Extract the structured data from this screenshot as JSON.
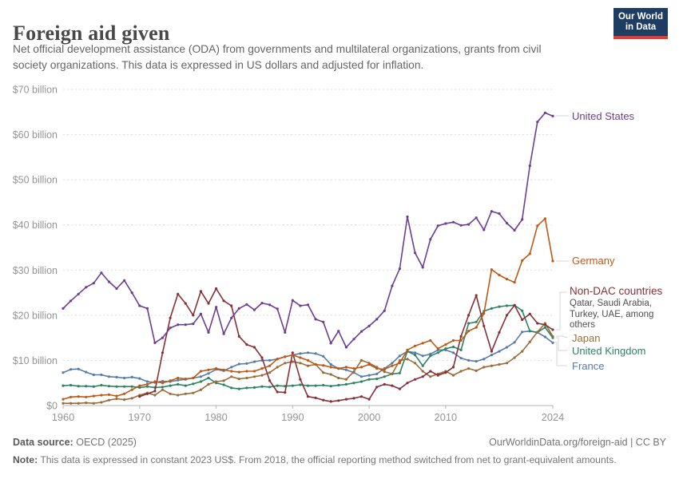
{
  "header": {
    "title": "Foreign aid given",
    "subtitle": "Net official development assistance (ODA) from governments and multilateral organizations, grants from civil society organizations. This data is expressed in US dollars and adjusted for inflation."
  },
  "logo": {
    "line1": "Our World",
    "line2": "in Data",
    "bg_color": "#1d3d63",
    "stripe_color": "#e23d35"
  },
  "labels": {
    "united_states": "United States",
    "germany": "Germany",
    "non_dac": "Non-DAC countries",
    "non_dac_sub": "Qatar, Saudi Arabia, Turkey, UAE, among others",
    "japan": "Japan",
    "united_kingdom": "United Kingdom",
    "france": "France"
  },
  "footer": {
    "source_label": "Data source:",
    "source": "OECD (2025)",
    "link": "OurWorldinData.org/foreign-aid | CC BY",
    "note_label": "Note:",
    "note": "This data is expressed in constant 2023 US$. From 2018, the official reporting method switched from net to grant-equivalent amounts."
  },
  "chart_data": {
    "type": "line",
    "title": "Foreign aid given",
    "unit": "US$ billion (constant 2023 US$)",
    "xlabel": "",
    "ylabel": "",
    "xlim": [
      1960,
      2024
    ],
    "ylim": [
      0,
      70
    ],
    "grid": "horizontal dashed",
    "legend_position": "right-edge entity labels",
    "x_ticks": [
      1960,
      1970,
      1980,
      1990,
      2000,
      2010,
      2024
    ],
    "y_ticks": [
      {
        "value": 0,
        "label": "$0"
      },
      {
        "value": 10,
        "label": "$10 billion"
      },
      {
        "value": 20,
        "label": "$20 billion"
      },
      {
        "value": 30,
        "label": "$30 billion"
      },
      {
        "value": 40,
        "label": "$40 billion"
      },
      {
        "value": 50,
        "label": "$50 billion"
      },
      {
        "value": 60,
        "label": "$60 billion"
      },
      {
        "value": 70,
        "label": "$70 billion"
      }
    ],
    "years": [
      1960,
      1961,
      1962,
      1963,
      1964,
      1965,
      1966,
      1967,
      1968,
      1969,
      1970,
      1971,
      1972,
      1973,
      1974,
      1975,
      1976,
      1977,
      1978,
      1979,
      1980,
      1981,
      1982,
      1983,
      1984,
      1985,
      1986,
      1987,
      1988,
      1989,
      1990,
      1991,
      1992,
      1993,
      1994,
      1995,
      1996,
      1997,
      1998,
      1999,
      2000,
      2001,
      2002,
      2003,
      2004,
      2005,
      2006,
      2007,
      2008,
      2009,
      2010,
      2011,
      2012,
      2013,
      2014,
      2015,
      2016,
      2017,
      2018,
      2019,
      2020,
      2021,
      2022,
      2023,
      2024
    ],
    "series": [
      {
        "name": "United States",
        "color": "#6D3E91",
        "values": [
          21.5,
          23.2,
          24.7,
          26.2,
          27.1,
          29.4,
          27.4,
          25.9,
          27.7,
          25.0,
          22.1,
          21.5,
          13.9,
          15.0,
          17.2,
          17.9,
          17.9,
          18.1,
          20.3,
          16.2,
          21.8,
          15.9,
          19.4,
          21.5,
          22.4,
          21.2,
          22.7,
          22.3,
          21.4,
          16.2,
          23.3,
          22.1,
          22.3,
          19.1,
          18.5,
          13.8,
          16.5,
          12.9,
          14.7,
          16.4,
          17.6,
          19.1,
          21.0,
          26.5,
          30.3,
          41.8,
          33.8,
          30.6,
          36.8,
          39.8,
          40.3,
          40.6,
          39.9,
          40.1,
          41.6,
          38.9,
          43.0,
          42.5,
          40.4,
          38.8,
          41.2,
          53.1,
          62.8,
          64.8,
          64.1
        ]
      },
      {
        "name": "Germany",
        "color": "#BE5915",
        "values": [
          1.4,
          1.9,
          2.0,
          1.9,
          2.1,
          2.3,
          2.4,
          2.1,
          2.6,
          3.5,
          4.4,
          4.7,
          5.3,
          5.0,
          5.5,
          6.1,
          5.9,
          6.1,
          7.6,
          7.9,
          8.2,
          7.9,
          7.6,
          7.4,
          7.6,
          7.6,
          8.2,
          8.8,
          10.3,
          10.8,
          11.2,
          10.6,
          10.0,
          9.1,
          8.9,
          8.5,
          8.2,
          8.5,
          8.2,
          8.5,
          9.1,
          8.2,
          8.0,
          8.8,
          9.4,
          12.3,
          13.2,
          13.8,
          14.4,
          12.6,
          13.5,
          14.4,
          14.4,
          16.5,
          17.3,
          20.4,
          30.1,
          28.9,
          28.0,
          27.3,
          32.1,
          33.6,
          39.8,
          41.4,
          32.0
        ]
      },
      {
        "name": "Non-DAC countries",
        "color": "#883039",
        "values": [
          null,
          null,
          null,
          null,
          null,
          null,
          null,
          null,
          null,
          null,
          2.0,
          2.6,
          3.2,
          11.7,
          19.4,
          24.7,
          22.6,
          20.0,
          25.3,
          22.6,
          25.9,
          23.2,
          22.1,
          15.3,
          13.5,
          12.9,
          10.6,
          5.5,
          3.0,
          2.9,
          11.7,
          5.8,
          2.0,
          1.7,
          1.2,
          0.9,
          1.1,
          1.4,
          1.6,
          2.0,
          1.4,
          4.1,
          4.7,
          4.4,
          3.7,
          5.0,
          5.8,
          6.4,
          7.6,
          6.7,
          7.3,
          8.5,
          15.3,
          20.0,
          24.4,
          17.6,
          12.0,
          16.2,
          20.0,
          22.2,
          19.0,
          20.3,
          18.2,
          17.9,
          16.8
        ]
      },
      {
        "name": "Japan",
        "color": "#996D39",
        "values": [
          0.5,
          0.5,
          0.5,
          0.6,
          0.5,
          0.7,
          1.2,
          1.5,
          1.3,
          1.6,
          2.3,
          2.8,
          2.3,
          3.5,
          2.6,
          2.3,
          2.6,
          2.8,
          3.5,
          4.7,
          5.3,
          5.5,
          6.4,
          5.9,
          6.1,
          6.4,
          6.7,
          7.3,
          8.5,
          9.4,
          9.7,
          9.4,
          8.8,
          9.1,
          7.3,
          6.9,
          6.1,
          5.8,
          7.5,
          10.0,
          9.4,
          8.5,
          7.5,
          7.0,
          10.0,
          10.3,
          9.4,
          7.6,
          6.4,
          7.0,
          7.6,
          6.7,
          7.6,
          8.2,
          7.7,
          8.5,
          8.8,
          9.1,
          9.4,
          10.6,
          12.0,
          14.1,
          16.3,
          18.2,
          15.3
        ]
      },
      {
        "name": "United Kingdom",
        "color": "#2C8465",
        "values": [
          4.4,
          4.5,
          4.3,
          4.3,
          4.2,
          4.5,
          4.3,
          4.2,
          4.2,
          4.2,
          4.0,
          4.2,
          4.0,
          4.1,
          4.4,
          4.7,
          4.4,
          4.8,
          5.3,
          6.1,
          5.0,
          4.6,
          3.9,
          3.7,
          3.9,
          4.0,
          4.2,
          4.1,
          4.4,
          4.3,
          4.4,
          4.6,
          4.4,
          4.4,
          4.5,
          4.3,
          4.5,
          4.7,
          5.0,
          5.3,
          5.8,
          5.9,
          6.4,
          7.0,
          7.2,
          12.0,
          11.2,
          8.8,
          11.0,
          11.7,
          12.6,
          13.0,
          12.3,
          18.2,
          18.5,
          20.9,
          21.5,
          21.9,
          22.1,
          22.2,
          21.0,
          16.5,
          16.2,
          17.3,
          15.0
        ]
      },
      {
        "name": "France",
        "color": "#577CA9",
        "values": [
          7.3,
          8.0,
          8.1,
          7.4,
          6.8,
          6.8,
          6.4,
          6.3,
          6.1,
          6.3,
          6.0,
          5.3,
          5.1,
          5.4,
          5.3,
          5.6,
          5.8,
          6.1,
          6.4,
          7.1,
          8.0,
          7.7,
          8.5,
          9.2,
          9.3,
          9.7,
          10.0,
          10.0,
          10.3,
          10.8,
          11.2,
          11.5,
          11.7,
          11.5,
          10.9,
          9.1,
          8.2,
          7.9,
          7.3,
          6.4,
          6.7,
          7.0,
          8.2,
          9.4,
          11.0,
          12.0,
          11.7,
          11.0,
          11.4,
          12.3,
          12.3,
          11.7,
          10.5,
          10.0,
          9.8,
          10.3,
          11.2,
          12.0,
          12.9,
          14.0,
          16.3,
          16.5,
          16.2,
          15.2,
          13.9
        ]
      }
    ]
  }
}
